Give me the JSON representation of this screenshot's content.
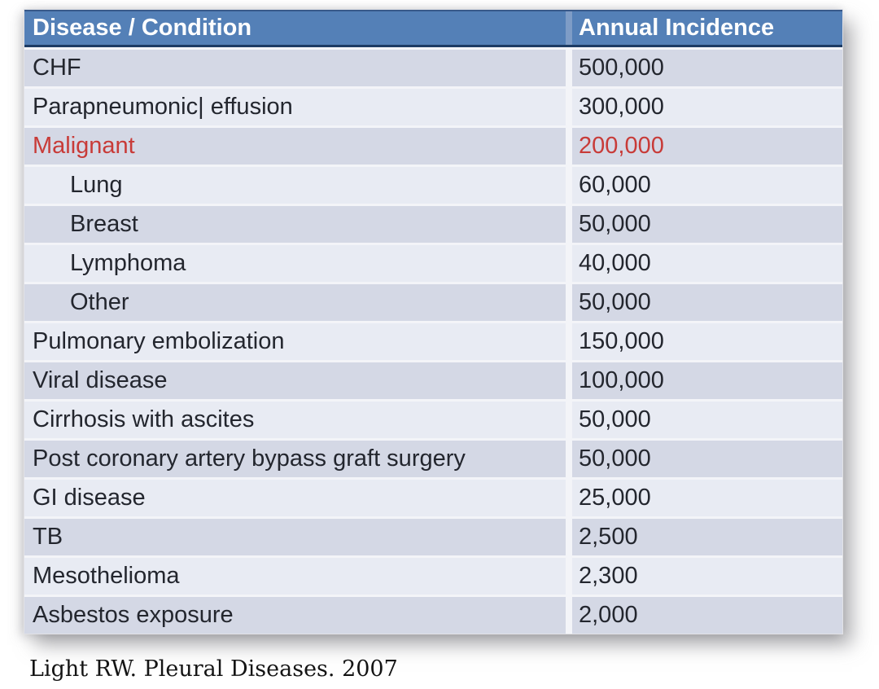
{
  "table": {
    "header": {
      "col1": "Disease / Condition",
      "col2": "Annual Incidence"
    },
    "rows": [
      {
        "label": "CHF",
        "value": "500,000"
      },
      {
        "label": "Parapneumonic| effusion",
        "value": "300,000"
      },
      {
        "label": "Malignant",
        "value": "200,000",
        "red": true
      },
      {
        "label": "Lung",
        "value": "60,000",
        "indent": true
      },
      {
        "label": "Breast",
        "value": "50,000",
        "indent": true
      },
      {
        "label": "Lymphoma",
        "value": "40,000",
        "indent": true
      },
      {
        "label": "Other",
        "value": "50,000",
        "indent": true
      },
      {
        "label": "Pulmonary embolization",
        "value": "150,000"
      },
      {
        "label": "Viral disease",
        "value": "100,000"
      },
      {
        "label": "Cirrhosis with ascites",
        "value": "50,000"
      },
      {
        "label": "Post coronary artery bypass graft surgery",
        "value": "50,000"
      },
      {
        "label": "GI disease",
        "value": "25,000"
      },
      {
        "label": "TB",
        "value": "2,500"
      },
      {
        "label": "Mesothelioma",
        "value": "2,300"
      },
      {
        "label": "Asbestos exposure",
        "value": "2,000"
      }
    ]
  },
  "footer": {
    "citation": "Light RW. Pleural Diseases. 2007"
  },
  "colors": {
    "header_bg": "#5480b7",
    "header_text": "#ffffff",
    "header_border_bottom": "#1c3b63",
    "row_odd_bg": "#d4d8e5",
    "row_even_bg": "#e8ebf3",
    "body_text": "#23262e",
    "accent_red": "#c83b38",
    "page_bg": "#ffffff"
  },
  "chart_data": {
    "type": "table",
    "columns": [
      "Disease / Condition",
      "Annual Incidence"
    ],
    "rows": [
      [
        "CHF",
        500000
      ],
      [
        "Parapneumonic effusion",
        300000
      ],
      [
        "Malignant",
        200000
      ],
      [
        "Lung",
        60000
      ],
      [
        "Breast",
        50000
      ],
      [
        "Lymphoma",
        40000
      ],
      [
        "Other",
        50000
      ],
      [
        "Pulmonary embolization",
        150000
      ],
      [
        "Viral disease",
        100000
      ],
      [
        "Cirrhosis with ascites",
        50000
      ],
      [
        "Post coronary artery bypass graft surgery",
        50000
      ],
      [
        "GI disease",
        25000
      ],
      [
        "TB",
        2500
      ],
      [
        "Mesothelioma",
        2300
      ],
      [
        "Asbestos exposure",
        2000
      ]
    ],
    "notes": {
      "indented_subrows_of_malignant": [
        "Lung",
        "Breast",
        "Lymphoma",
        "Other"
      ],
      "red_highlighted_row": "Malignant",
      "source": "Light RW. Pleural Diseases. 2007"
    }
  }
}
